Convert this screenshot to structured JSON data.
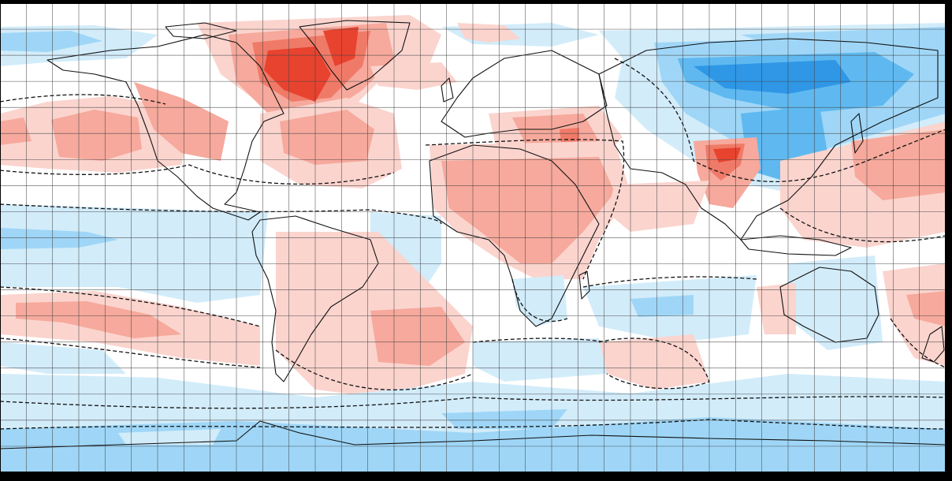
{
  "map": {
    "projection": "equirectangular",
    "grid": {
      "lon_step_deg": 10,
      "lat_step_deg": 10,
      "visible": true,
      "color": "#444444"
    },
    "coastlines_visible": true,
    "dashed_zero_contour_visible": true,
    "colors": {
      "neutral": "#ffffff",
      "warm_1": "#fbd4ce",
      "warm_2": "#f6a99c",
      "warm_3": "#f07a68",
      "warm_4": "#e8432f",
      "cool_1": "#d2ecfa",
      "cool_2": "#9fd6f7",
      "cool_3": "#5fb9f0",
      "cool_4": "#2f97e6",
      "coast": "#111111",
      "frame": "#000000"
    },
    "anomaly_regions": [
      {
        "name": "arctic-cool-band",
        "category": "cool_1"
      },
      {
        "name": "greenland-warm",
        "category": "warm_3"
      },
      {
        "name": "baffin-strong-warm",
        "category": "warm_4"
      },
      {
        "name": "north-pacific-warm",
        "category": "warm_2"
      },
      {
        "name": "north-atlantic-warm",
        "category": "warm_2"
      },
      {
        "name": "siberia-cool",
        "category": "cool_2"
      },
      {
        "name": "central-asia-strong-cool",
        "category": "cool_4"
      },
      {
        "name": "mongolia-china-cool",
        "category": "cool_3"
      },
      {
        "name": "north-africa-middle-east-warm",
        "category": "warm_2"
      },
      {
        "name": "turkey-caucasus-warm",
        "category": "warm_2"
      },
      {
        "name": "tibet-strong-warm",
        "category": "warm_4"
      },
      {
        "name": "west-pacific-warm",
        "category": "warm_2"
      },
      {
        "name": "tropical-pacific-cool",
        "category": "cool_1"
      },
      {
        "name": "south-atlantic-warm",
        "category": "warm_2"
      },
      {
        "name": "southern-pacific-warm-band",
        "category": "warm_1"
      },
      {
        "name": "southern-ocean-cool",
        "category": "cool_2"
      },
      {
        "name": "antarctica-cool",
        "category": "cool_2"
      }
    ]
  }
}
